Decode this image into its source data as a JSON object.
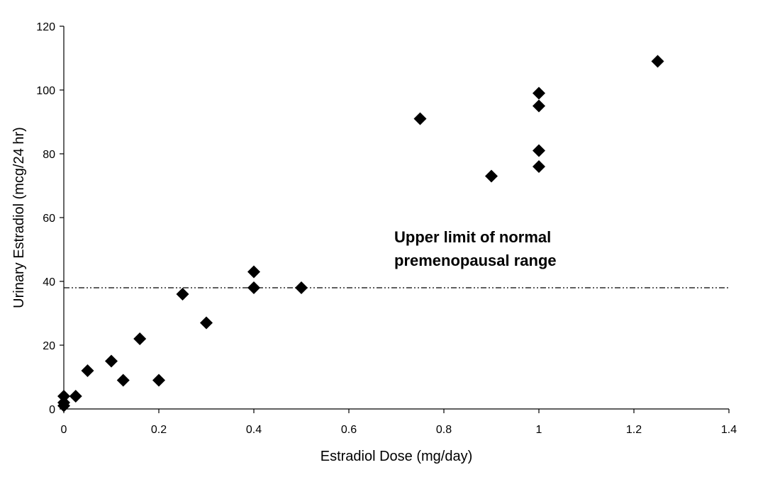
{
  "chart_data": {
    "type": "scatter",
    "title": "",
    "xlabel": "Estradiol Dose (mg/day)",
    "ylabel": "Urinary Estradiol (mcg/24 hr)",
    "xlim": [
      0,
      1.4
    ],
    "ylim": [
      0,
      120
    ],
    "x_ticks": [
      "0",
      "0.2",
      "0.4",
      "0.6",
      "0.8",
      "1",
      "1.2",
      "1.4"
    ],
    "y_ticks": [
      "0",
      "20",
      "40",
      "60",
      "80",
      "100",
      "120"
    ],
    "grid": false,
    "marker": "diamond",
    "marker_color": "#000000",
    "series": [
      {
        "name": "Urinary Estradiol",
        "x": [
          0,
          0,
          0,
          0.025,
          0.05,
          0.1,
          0.125,
          0.16,
          0.2,
          0.25,
          0.3,
          0.4,
          0.4,
          0.5,
          0.75,
          0.9,
          1,
          1,
          1,
          1,
          1.25
        ],
        "y": [
          1,
          2,
          4,
          4,
          12,
          15,
          9,
          22,
          9,
          36,
          27,
          43,
          38,
          38,
          91,
          73,
          99,
          95,
          81,
          76,
          109
        ]
      }
    ],
    "reference_line": {
      "y": 38,
      "style": "dash-dot",
      "color": "#000000",
      "label_lines": [
        "Upper limit of normal",
        "premenopausal range"
      ]
    }
  }
}
